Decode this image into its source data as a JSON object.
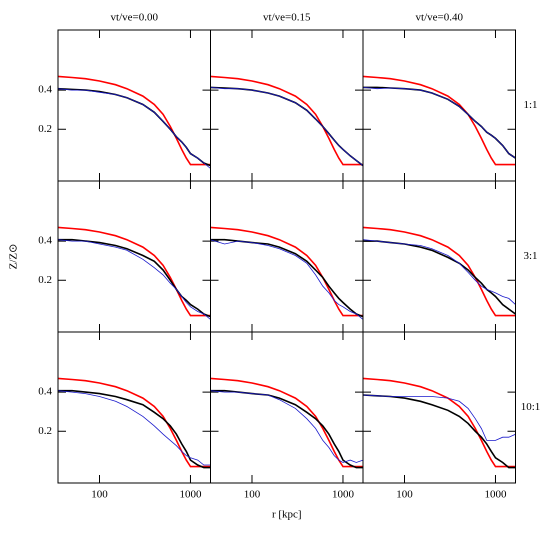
{
  "chart_data": [
    {
      "type": "line",
      "title": "vt/ve=0.00",
      "x": [
        35,
        50,
        70,
        100,
        150,
        200,
        300,
        400,
        500,
        600,
        700,
        800,
        900,
        1000,
        1200,
        1400,
        1660
      ],
      "series": [
        {
          "color": "#ff0000",
          "values": [
            0.51,
            0.5,
            0.49,
            0.47,
            0.44,
            0.41,
            0.36,
            0.31,
            0.26,
            0.21,
            0.17,
            0.14,
            0.12,
            0.107,
            0.107,
            0.107,
            0.107
          ]
        },
        {
          "color": "#000000",
          "values": [
            0.41,
            0.405,
            0.4,
            0.39,
            0.37,
            0.35,
            0.31,
            0.27,
            0.23,
            0.2,
            0.175,
            0.16,
            0.145,
            0.13,
            0.12,
            0.11,
            0.105
          ]
        },
        {
          "color": "#1a1acc",
          "values": [
            0.41,
            0.4,
            0.4,
            0.385,
            0.37,
            0.35,
            0.31,
            0.27,
            0.23,
            0.2,
            0.175,
            0.16,
            0.145,
            0.13,
            0.12,
            0.11,
            0.1
          ]
        }
      ],
      "xlim": [
        35,
        1660
      ],
      "ylim": [
        0.08,
        1.16
      ],
      "xticks": [
        100,
        1000
      ],
      "yticks": [
        0.2,
        0.4
      ],
      "log_x": true,
      "log_y": true
    },
    {
      "type": "line",
      "title": "vt/ve=0.15",
      "x": [
        35,
        50,
        70,
        100,
        150,
        200,
        300,
        400,
        500,
        600,
        700,
        800,
        900,
        1000,
        1200,
        1400,
        1660
      ],
      "series": [
        {
          "color": "#ff0000",
          "values": [
            0.51,
            0.5,
            0.49,
            0.47,
            0.44,
            0.41,
            0.36,
            0.31,
            0.26,
            0.21,
            0.17,
            0.14,
            0.12,
            0.107,
            0.107,
            0.107,
            0.107
          ]
        },
        {
          "color": "#000000",
          "values": [
            0.42,
            0.415,
            0.41,
            0.4,
            0.38,
            0.36,
            0.32,
            0.28,
            0.24,
            0.21,
            0.185,
            0.165,
            0.15,
            0.14,
            0.125,
            0.115,
            0.105
          ]
        },
        {
          "color": "#1a1acc",
          "values": [
            0.42,
            0.41,
            0.41,
            0.4,
            0.38,
            0.36,
            0.32,
            0.28,
            0.24,
            0.21,
            0.185,
            0.165,
            0.15,
            0.14,
            0.125,
            0.115,
            0.105
          ]
        }
      ],
      "xlim": [
        35,
        1660
      ],
      "ylim": [
        0.08,
        1.16
      ],
      "xticks": [
        100,
        1000
      ],
      "yticks": [
        0.2,
        0.4
      ],
      "log_x": true,
      "log_y": true
    },
    {
      "type": "line",
      "title": "vt/ve=0.40",
      "annotation": "1:1",
      "x": [
        35,
        50,
        70,
        100,
        150,
        200,
        300,
        400,
        500,
        600,
        700,
        800,
        900,
        1000,
        1200,
        1400,
        1660
      ],
      "series": [
        {
          "color": "#ff0000",
          "values": [
            0.51,
            0.5,
            0.49,
            0.47,
            0.44,
            0.41,
            0.36,
            0.31,
            0.26,
            0.21,
            0.17,
            0.14,
            0.12,
            0.107,
            0.107,
            0.107,
            0.107
          ]
        },
        {
          "color": "#000000",
          "values": [
            0.42,
            0.42,
            0.415,
            0.41,
            0.4,
            0.38,
            0.34,
            0.3,
            0.26,
            0.23,
            0.21,
            0.19,
            0.18,
            0.17,
            0.15,
            0.13,
            0.12
          ]
        },
        {
          "color": "#1a1acc",
          "values": [
            0.42,
            0.41,
            0.415,
            0.41,
            0.4,
            0.38,
            0.34,
            0.3,
            0.26,
            0.23,
            0.21,
            0.19,
            0.18,
            0.17,
            0.15,
            0.13,
            0.12
          ]
        }
      ],
      "xlim": [
        35,
        1660
      ],
      "ylim": [
        0.08,
        1.16
      ],
      "xticks": [
        100,
        1000
      ],
      "yticks": [
        0.2,
        0.4
      ],
      "log_x": true,
      "log_y": true
    },
    {
      "type": "line",
      "ylabel": "Z/Z⊙",
      "x": [
        35,
        50,
        70,
        100,
        150,
        200,
        300,
        400,
        500,
        600,
        700,
        800,
        900,
        1000,
        1200,
        1400,
        1660
      ],
      "series": [
        {
          "color": "#ff0000",
          "values": [
            0.51,
            0.5,
            0.49,
            0.47,
            0.44,
            0.41,
            0.36,
            0.31,
            0.26,
            0.21,
            0.17,
            0.14,
            0.12,
            0.107,
            0.107,
            0.107,
            0.107
          ]
        },
        {
          "color": "#000000",
          "values": [
            0.41,
            0.41,
            0.4,
            0.39,
            0.37,
            0.35,
            0.31,
            0.28,
            0.24,
            0.2,
            0.17,
            0.15,
            0.14,
            0.13,
            0.12,
            0.11,
            0.105
          ]
        },
        {
          "color": "#1a1acc",
          "values": [
            0.41,
            0.4,
            0.4,
            0.38,
            0.36,
            0.34,
            0.29,
            0.25,
            0.22,
            0.19,
            0.17,
            0.15,
            0.135,
            0.125,
            0.115,
            0.11,
            0.1
          ]
        }
      ],
      "xlim": [
        35,
        1660
      ],
      "ylim": [
        0.08,
        1.16
      ],
      "xticks": [
        100,
        1000
      ],
      "yticks": [
        0.2,
        0.4
      ],
      "log_x": true,
      "log_y": true
    },
    {
      "type": "line",
      "x": [
        35,
        50,
        70,
        100,
        150,
        200,
        300,
        400,
        500,
        600,
        700,
        800,
        900,
        1000,
        1200,
        1400,
        1660
      ],
      "series": [
        {
          "color": "#ff0000",
          "values": [
            0.51,
            0.5,
            0.49,
            0.47,
            0.44,
            0.41,
            0.36,
            0.31,
            0.26,
            0.21,
            0.17,
            0.14,
            0.12,
            0.107,
            0.107,
            0.107,
            0.107
          ]
        },
        {
          "color": "#000000",
          "values": [
            0.41,
            0.41,
            0.4,
            0.39,
            0.38,
            0.36,
            0.32,
            0.28,
            0.24,
            0.21,
            0.18,
            0.16,
            0.145,
            0.135,
            0.12,
            0.11,
            0.105
          ]
        },
        {
          "color": "#1a1acc",
          "values": [
            0.41,
            0.38,
            0.4,
            0.39,
            0.37,
            0.35,
            0.31,
            0.27,
            0.22,
            0.18,
            0.16,
            0.14,
            0.13,
            0.125,
            0.115,
            0.11,
            0.1
          ]
        }
      ],
      "xlim": [
        35,
        1660
      ],
      "ylim": [
        0.08,
        1.16
      ],
      "xticks": [
        100,
        1000
      ],
      "yticks": [
        0.2,
        0.4
      ],
      "log_x": true,
      "log_y": true
    },
    {
      "type": "line",
      "annotation": "3:1",
      "x": [
        35,
        50,
        70,
        100,
        150,
        200,
        300,
        400,
        500,
        600,
        700,
        800,
        900,
        1000,
        1200,
        1400,
        1660
      ],
      "series": [
        {
          "color": "#ff0000",
          "values": [
            0.51,
            0.5,
            0.49,
            0.47,
            0.44,
            0.41,
            0.36,
            0.31,
            0.26,
            0.21,
            0.17,
            0.14,
            0.12,
            0.107,
            0.107,
            0.107,
            0.107
          ]
        },
        {
          "color": "#000000",
          "values": [
            0.4,
            0.4,
            0.39,
            0.38,
            0.36,
            0.34,
            0.3,
            0.27,
            0.24,
            0.21,
            0.19,
            0.17,
            0.16,
            0.15,
            0.13,
            0.12,
            0.11
          ]
        },
        {
          "color": "#1a1acc",
          "values": [
            0.41,
            0.4,
            0.39,
            0.38,
            0.37,
            0.35,
            0.31,
            0.27,
            0.23,
            0.2,
            0.18,
            0.17,
            0.165,
            0.16,
            0.15,
            0.145,
            0.13
          ]
        }
      ],
      "xlim": [
        35,
        1660
      ],
      "ylim": [
        0.08,
        1.16
      ],
      "xticks": [
        100,
        1000
      ],
      "yticks": [
        0.2,
        0.4
      ],
      "log_x": true,
      "log_y": true
    },
    {
      "type": "line",
      "x": [
        35,
        50,
        70,
        100,
        150,
        200,
        300,
        400,
        500,
        600,
        700,
        800,
        900,
        1000,
        1200,
        1400,
        1660
      ],
      "series": [
        {
          "color": "#ff0000",
          "values": [
            0.51,
            0.5,
            0.49,
            0.47,
            0.44,
            0.41,
            0.36,
            0.31,
            0.26,
            0.21,
            0.17,
            0.14,
            0.12,
            0.107,
            0.107,
            0.107,
            0.107
          ]
        },
        {
          "color": "#000000",
          "values": [
            0.41,
            0.41,
            0.4,
            0.39,
            0.37,
            0.35,
            0.32,
            0.28,
            0.25,
            0.22,
            0.19,
            0.16,
            0.14,
            0.12,
            0.11,
            0.105,
            0.105
          ]
        },
        {
          "color": "#1a1acc",
          "values": [
            0.41,
            0.4,
            0.39,
            0.37,
            0.34,
            0.31,
            0.26,
            0.22,
            0.19,
            0.17,
            0.155,
            0.14,
            0.13,
            0.125,
            0.12,
            0.11,
            0.11
          ]
        }
      ],
      "xlim": [
        35,
        1660
      ],
      "ylim": [
        0.08,
        1.16
      ],
      "xticks": [
        100,
        1000
      ],
      "yticks": [
        0.2,
        0.4
      ],
      "log_x": true,
      "log_y": true
    },
    {
      "type": "line",
      "xlabel": "r [kpc]",
      "x": [
        35,
        50,
        70,
        100,
        150,
        200,
        300,
        400,
        500,
        600,
        700,
        800,
        900,
        1000,
        1200,
        1400,
        1660
      ],
      "series": [
        {
          "color": "#ff0000",
          "values": [
            0.51,
            0.5,
            0.49,
            0.47,
            0.44,
            0.41,
            0.36,
            0.31,
            0.26,
            0.21,
            0.17,
            0.14,
            0.12,
            0.107,
            0.107,
            0.107,
            0.107
          ]
        },
        {
          "color": "#000000",
          "values": [
            0.41,
            0.41,
            0.4,
            0.39,
            0.38,
            0.36,
            0.32,
            0.28,
            0.25,
            0.22,
            0.19,
            0.16,
            0.14,
            0.12,
            0.11,
            0.105,
            0.105
          ]
        },
        {
          "color": "#1a1acc",
          "values": [
            0.41,
            0.4,
            0.4,
            0.39,
            0.38,
            0.35,
            0.3,
            0.25,
            0.21,
            0.17,
            0.15,
            0.13,
            0.12,
            0.115,
            0.12,
            0.115,
            0.12
          ]
        }
      ],
      "xlim": [
        35,
        1660
      ],
      "ylim": [
        0.08,
        1.16
      ],
      "xticks": [
        100,
        1000
      ],
      "yticks": [
        0.2,
        0.4
      ],
      "log_x": true,
      "log_y": true
    },
    {
      "type": "line",
      "annotation": "10:1",
      "x": [
        35,
        50,
        70,
        100,
        150,
        200,
        300,
        400,
        500,
        600,
        700,
        800,
        900,
        1000,
        1200,
        1400,
        1660
      ],
      "series": [
        {
          "color": "#ff0000",
          "values": [
            0.51,
            0.5,
            0.49,
            0.47,
            0.44,
            0.41,
            0.36,
            0.31,
            0.26,
            0.21,
            0.17,
            0.14,
            0.12,
            0.107,
            0.107,
            0.107,
            0.107
          ]
        },
        {
          "color": "#000000",
          "values": [
            0.38,
            0.375,
            0.37,
            0.36,
            0.34,
            0.32,
            0.29,
            0.26,
            0.23,
            0.2,
            0.18,
            0.16,
            0.14,
            0.125,
            0.115,
            0.105,
            0.105
          ]
        },
        {
          "color": "#1a1acc",
          "values": [
            0.38,
            0.375,
            0.37,
            0.37,
            0.37,
            0.37,
            0.36,
            0.34,
            0.3,
            0.25,
            0.21,
            0.17,
            0.17,
            0.17,
            0.18,
            0.18,
            0.19
          ]
        }
      ],
      "xlim": [
        35,
        1660
      ],
      "ylim": [
        0.08,
        1.16
      ],
      "xticks": [
        100,
        1000
      ],
      "yticks": [
        0.2,
        0.4
      ],
      "log_x": true,
      "log_y": true
    }
  ]
}
